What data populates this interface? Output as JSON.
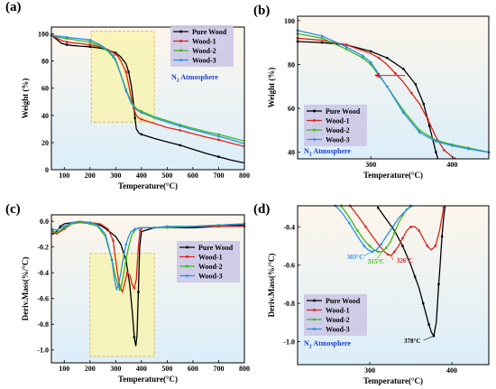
{
  "colors": {
    "Pure Wood": "#000000",
    "Wood-1": "#d9241c",
    "Wood-2": "#3cb81e",
    "Wood-3": "#2c8fe8",
    "legend_bg": "#ccc8e6",
    "highlight_fill": "#f7f3b0",
    "highlight_stroke": "#e0b030",
    "bg_top": "#fdf6ec",
    "bg_bottom": "#dbeef9",
    "atm_color": "#1f3fd6",
    "arrow_color": "#e0203a"
  },
  "chart_data": [
    {
      "panel": "(a)",
      "type": "line",
      "xlabel": "Temperature(°C)",
      "ylabel": "Weight (%)",
      "xlim": [
        50,
        800
      ],
      "ylim": [
        0,
        105
      ],
      "xticks": [
        "100",
        "200",
        "300",
        "400",
        "500",
        "600",
        "700",
        "800"
      ],
      "yticks": [
        "0",
        "20",
        "40",
        "60",
        "80",
        "100"
      ],
      "legend_position": "top-right",
      "atmosphere_label": "N",
      "atmosphere_sub": "2",
      "atmosphere_rest": " Atmosphere",
      "highlight_x": [
        205,
        450
      ],
      "highlight_y": [
        35,
        102
      ],
      "series": [
        {
          "name": "Pure Wood",
          "x": [
            50,
            70,
            90,
            110,
            130,
            160,
            200,
            240,
            270,
            300,
            320,
            340,
            350,
            360,
            370,
            375,
            380,
            390,
            400,
            450,
            500,
            550,
            600,
            650,
            700,
            750,
            800
          ],
          "y": [
            99,
            96,
            93,
            92,
            91.5,
            91,
            90.5,
            89.5,
            88,
            86,
            83,
            78,
            72,
            62,
            48,
            38,
            30,
            27,
            26,
            23,
            20.5,
            18,
            15,
            12,
            9.5,
            7,
            5
          ]
        },
        {
          "name": "Wood-1",
          "x": [
            50,
            70,
            90,
            110,
            130,
            160,
            200,
            240,
            270,
            300,
            310,
            320,
            340,
            350,
            360,
            370,
            380,
            390,
            400,
            450,
            500,
            550,
            600,
            650,
            700,
            750,
            800
          ],
          "y": [
            99,
            97,
            95,
            94,
            93.5,
            93,
            92,
            90.5,
            88.5,
            85,
            83,
            80,
            72,
            63,
            53,
            45,
            40,
            38,
            37,
            34,
            31,
            29,
            26.5,
            24,
            22,
            19.5,
            17
          ]
        },
        {
          "name": "Wood-2",
          "x": [
            50,
            70,
            90,
            110,
            130,
            160,
            200,
            240,
            270,
            290,
            300,
            320,
            340,
            360,
            380,
            400,
            450,
            500,
            550,
            600,
            650,
            700,
            750,
            800
          ],
          "y": [
            99,
            98,
            97,
            96.5,
            96,
            95,
            94,
            91,
            87,
            83,
            80,
            70,
            59,
            50,
            45,
            43,
            39,
            36,
            33,
            30.5,
            28,
            26,
            23.5,
            21
          ]
        },
        {
          "name": "Wood-3",
          "x": [
            50,
            70,
            90,
            110,
            130,
            160,
            200,
            240,
            270,
            290,
            300,
            320,
            340,
            360,
            380,
            400,
            450,
            500,
            550,
            600,
            650,
            700,
            750,
            800
          ],
          "y": [
            99,
            98.5,
            98,
            97.5,
            97,
            96.5,
            95.5,
            92,
            88,
            84,
            81,
            70,
            58,
            49,
            44,
            42,
            38,
            35,
            32,
            29.5,
            27,
            24.5,
            22,
            19
          ]
        }
      ]
    },
    {
      "panel": "(b)",
      "type": "line",
      "xlabel": "Temperature(°C)",
      "ylabel": "Weight (%)",
      "xlim": [
        210,
        445
      ],
      "ylim": [
        37,
        102
      ],
      "xticks": [
        "300",
        "400"
      ],
      "yticks": [
        "40",
        "60",
        "80",
        "100"
      ],
      "legend_position": "bottom-left",
      "atmosphere_label": "N",
      "atmosphere_sub": "2",
      "atmosphere_rest": " Atmosphere",
      "arrow": {
        "from": [
          342,
          75
        ],
        "to": [
          305,
          75
        ]
      },
      "series": [
        {
          "name": "Pure Wood",
          "x": [
            210,
            240,
            270,
            300,
            320,
            340,
            355,
            365,
            372,
            380,
            385
          ],
          "y": [
            90.5,
            90,
            89,
            86,
            83,
            78,
            71,
            62,
            52,
            40,
            34
          ]
        },
        {
          "name": "Wood-1",
          "x": [
            210,
            240,
            270,
            300,
            310,
            320,
            330,
            340,
            350,
            360,
            370,
            380,
            390,
            400,
            410,
            420
          ],
          "y": [
            92,
            91,
            89,
            85,
            83,
            80,
            76,
            72,
            67,
            62,
            55,
            47,
            41,
            38,
            36,
            35
          ]
        },
        {
          "name": "Wood-2",
          "x": [
            210,
            240,
            270,
            290,
            300,
            320,
            340,
            360,
            380,
            400,
            420,
            445
          ],
          "y": [
            94,
            92,
            87,
            83,
            80,
            70,
            59,
            50,
            45.5,
            43.5,
            42,
            40
          ]
        },
        {
          "name": "Wood-3",
          "x": [
            210,
            240,
            270,
            290,
            300,
            320,
            340,
            360,
            380,
            400,
            420,
            445
          ],
          "y": [
            95.5,
            93,
            88,
            84,
            81,
            70,
            58,
            49,
            45,
            43,
            41.5,
            40
          ]
        }
      ]
    },
    {
      "panel": "(c)",
      "type": "line",
      "xlabel": "Temperature(°C)",
      "ylabel": "Deriv.Mass(%/°C)",
      "xlim": [
        50,
        800
      ],
      "ylim": [
        -1.1,
        0.05
      ],
      "xticks": [
        "100",
        "200",
        "300",
        "400",
        "500",
        "600",
        "700",
        "800"
      ],
      "yticks": [
        "-1.0",
        "-0.8",
        "-0.6",
        "-0.4",
        "-0.2",
        "0.0"
      ],
      "legend_position": "right",
      "highlight_x": [
        200,
        450
      ],
      "highlight_y": [
        -1.05,
        -0.25
      ],
      "series": [
        {
          "name": "Pure Wood",
          "x": [
            40,
            55,
            70,
            85,
            100,
            130,
            160,
            200,
            240,
            270,
            300,
            320,
            340,
            355,
            365,
            372,
            378,
            383,
            388,
            393,
            400,
            450,
            500,
            600,
            700,
            800
          ],
          "y": [
            -0.07,
            -0.1,
            -0.08,
            -0.04,
            -0.02,
            -0.01,
            -0.005,
            -0.01,
            -0.03,
            -0.07,
            -0.12,
            -0.18,
            -0.3,
            -0.5,
            -0.72,
            -0.9,
            -0.97,
            -0.88,
            -0.55,
            -0.2,
            -0.08,
            -0.05,
            -0.05,
            -0.05,
            -0.04,
            -0.03
          ]
        },
        {
          "name": "Wood-1",
          "x": [
            40,
            55,
            70,
            100,
            130,
            160,
            200,
            240,
            270,
            290,
            300,
            310,
            318,
            326,
            335,
            345,
            355,
            365,
            372,
            380,
            388,
            395,
            405,
            450,
            500,
            600,
            700,
            800
          ],
          "y": [
            -0.04,
            -0.08,
            -0.1,
            -0.06,
            -0.02,
            -0.01,
            -0.01,
            -0.02,
            -0.06,
            -0.15,
            -0.3,
            -0.45,
            -0.52,
            -0.55,
            -0.48,
            -0.4,
            -0.42,
            -0.5,
            -0.52,
            -0.45,
            -0.2,
            -0.07,
            -0.05,
            -0.05,
            -0.05,
            -0.04,
            -0.04,
            -0.04
          ]
        },
        {
          "name": "Wood-2",
          "x": [
            40,
            55,
            70,
            100,
            130,
            160,
            200,
            230,
            260,
            285,
            300,
            310,
            315,
            322,
            330,
            340,
            350,
            360,
            370,
            380,
            395,
            450,
            500,
            600,
            700,
            800
          ],
          "y": [
            -0.04,
            -0.07,
            -0.09,
            -0.05,
            -0.02,
            -0.01,
            -0.02,
            -0.04,
            -0.12,
            -0.3,
            -0.44,
            -0.5,
            -0.53,
            -0.5,
            -0.42,
            -0.3,
            -0.2,
            -0.12,
            -0.08,
            -0.06,
            -0.05,
            -0.05,
            -0.05,
            -0.04,
            -0.03,
            -0.02
          ]
        },
        {
          "name": "Wood-3",
          "x": [
            40,
            55,
            70,
            100,
            130,
            160,
            200,
            230,
            260,
            285,
            295,
            303,
            310,
            320,
            330,
            340,
            350,
            360,
            375,
            400,
            450,
            500,
            600,
            700,
            800
          ],
          "y": [
            -0.03,
            -0.06,
            -0.07,
            -0.04,
            -0.01,
            0.0,
            -0.01,
            -0.03,
            -0.1,
            -0.3,
            -0.45,
            -0.53,
            -0.5,
            -0.4,
            -0.28,
            -0.18,
            -0.12,
            -0.08,
            -0.06,
            -0.05,
            -0.05,
            -0.04,
            -0.04,
            -0.03,
            -0.02
          ]
        }
      ]
    },
    {
      "panel": "(d)",
      "type": "line",
      "xlabel": "Temperature(°C)",
      "ylabel": "Deriv.Mass(%/°C)",
      "xlim": [
        212,
        445
      ],
      "ylim": [
        -1.12,
        -0.29
      ],
      "xticks": [
        "300",
        "400"
      ],
      "yticks": [
        "-1.0",
        "-0.8",
        "-0.6",
        "-0.4"
      ],
      "legend_position": "bottom-left",
      "atmosphere_label": "N",
      "atmosphere_sub": "2",
      "atmosphere_rest": " Atmosphere",
      "peaks": [
        {
          "series": "Pure Wood",
          "label": "378°C",
          "x": 378,
          "y": -0.97
        },
        {
          "series": "Wood-1",
          "label": "326°C",
          "x": 326,
          "y": -0.55
        },
        {
          "series": "Wood-2",
          "label": "315°C",
          "x": 315,
          "y": -0.53
        },
        {
          "series": "Wood-3",
          "label": "303°C",
          "x": 303,
          "y": -0.53
        }
      ],
      "series": [
        {
          "name": "Pure Wood",
          "x": [
            310,
            330,
            340,
            350,
            355,
            360,
            365,
            370,
            372,
            375,
            378,
            381,
            384,
            386,
            388,
            390,
            393,
            396
          ],
          "y": [
            -0.3,
            -0.42,
            -0.5,
            -0.6,
            -0.66,
            -0.72,
            -0.8,
            -0.88,
            -0.91,
            -0.95,
            -0.97,
            -0.9,
            -0.7,
            -0.58,
            -0.45,
            -0.35,
            -0.25,
            -0.2
          ]
        },
        {
          "name": "Wood-1",
          "x": [
            276,
            285,
            295,
            305,
            312,
            318,
            322,
            326,
            330,
            335,
            340,
            345,
            350,
            355,
            360,
            365,
            370,
            375,
            380,
            385,
            390,
            393
          ],
          "y": [
            -0.29,
            -0.34,
            -0.4,
            -0.46,
            -0.5,
            -0.53,
            -0.545,
            -0.55,
            -0.53,
            -0.5,
            -0.46,
            -0.42,
            -0.4,
            -0.4,
            -0.42,
            -0.46,
            -0.5,
            -0.52,
            -0.5,
            -0.42,
            -0.3,
            -0.25
          ]
        },
        {
          "name": "Wood-2",
          "x": [
            265,
            275,
            285,
            295,
            300,
            305,
            310,
            315,
            320,
            325,
            330,
            335,
            340,
            345,
            350
          ],
          "y": [
            -0.29,
            -0.35,
            -0.42,
            -0.48,
            -0.5,
            -0.52,
            -0.53,
            -0.53,
            -0.51,
            -0.48,
            -0.43,
            -0.38,
            -0.34,
            -0.31,
            -0.29
          ]
        },
        {
          "name": "Wood-3",
          "x": [
            258,
            265,
            275,
            285,
            293,
            298,
            303,
            308,
            314,
            320,
            328,
            336,
            345,
            352,
            360
          ],
          "y": [
            -0.29,
            -0.32,
            -0.38,
            -0.45,
            -0.5,
            -0.52,
            -0.53,
            -0.52,
            -0.49,
            -0.45,
            -0.4,
            -0.35,
            -0.31,
            -0.29,
            -0.28
          ]
        }
      ]
    }
  ]
}
